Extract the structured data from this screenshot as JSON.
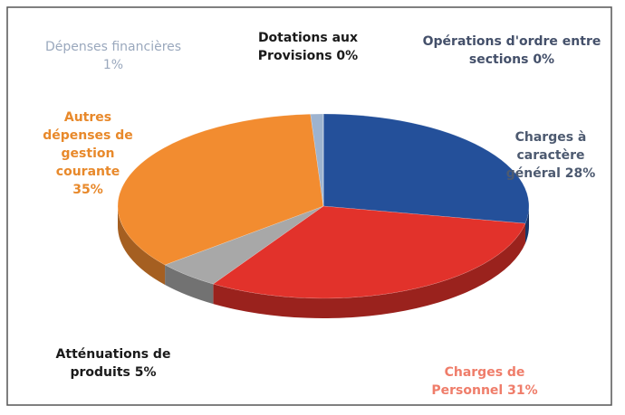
{
  "chart_data": {
    "type": "pie",
    "categories": [
      "Charges à caractère général",
      "Charges de Personnel",
      "Atténuations de produits",
      "Autres dépenses de gestion courante",
      "Dépenses financières",
      "Dotations aux Provisions",
      "Opérations d'ordre entre sections"
    ],
    "values": [
      28,
      31,
      5,
      35,
      1,
      0,
      0
    ],
    "value_labels": [
      "28%",
      "31%",
      "5%",
      "35%",
      "1%",
      "0%",
      "0%"
    ],
    "colors": [
      "#24509a",
      "#e2322b",
      "#a8a8a8",
      "#f28c30",
      "#9db3cf",
      "#7f7f7f",
      "#5b6f8a"
    ]
  }
}
